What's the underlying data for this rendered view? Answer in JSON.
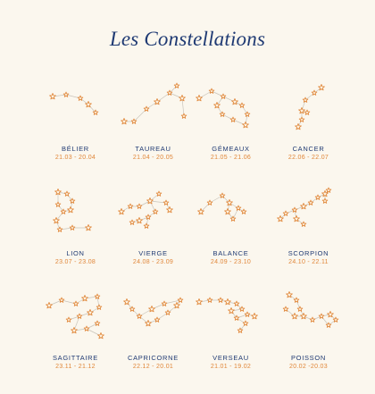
{
  "title": "Les Constellations",
  "colors": {
    "background": "#fbf7ee",
    "heading": "#1f3a73",
    "accent": "#e0873a",
    "line": "#c9c4ba"
  },
  "star_icon": "star-icon",
  "signs": [
    {
      "name": "BÉLIER",
      "dates": "21.03 - 20.04"
    },
    {
      "name": "TAUREAU",
      "dates": "21.04 - 20.05"
    },
    {
      "name": "GÉMEAUX",
      "dates": "21.05 - 21.06"
    },
    {
      "name": "CANCER",
      "dates": "22.06 - 22.07"
    },
    {
      "name": "LION",
      "dates": "23.07 - 23.08"
    },
    {
      "name": "VIERGE",
      "dates": "24.08 - 23.09"
    },
    {
      "name": "BALANCE",
      "dates": "24.09 - 23.10"
    },
    {
      "name": "SCORPION",
      "dates": "24.10 - 22.11"
    },
    {
      "name": "SAGITTAIRE",
      "dates": "23.11 - 21.12"
    },
    {
      "name": "CAPRICORNE",
      "dates": "22.12 - 20.01"
    },
    {
      "name": "VERSEAU",
      "dates": "21.01 - 19.02"
    },
    {
      "name": "POISSON",
      "dates": "20.02 -20.03"
    }
  ]
}
